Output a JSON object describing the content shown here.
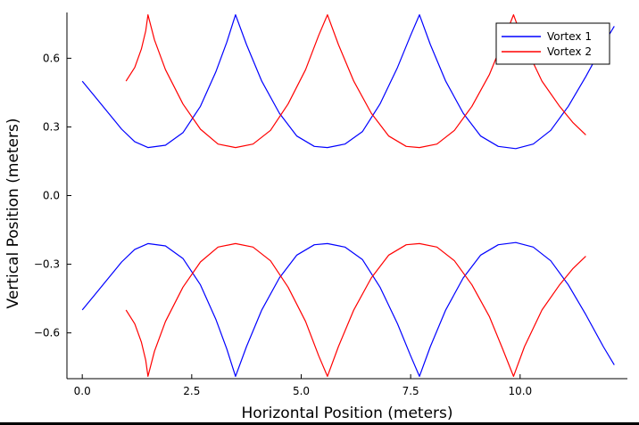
{
  "chart_data": {
    "type": "line",
    "title": "",
    "xlabel": "Horizontal Position (meters)",
    "ylabel": "Vertical Position (meters)",
    "xlim": [
      -0.35,
      12.45
    ],
    "ylim": [
      -0.8,
      0.8
    ],
    "xticks": [
      0.0,
      2.5,
      5.0,
      7.5,
      10.0
    ],
    "yticks": [
      -0.6,
      -0.3,
      0.0,
      0.3,
      0.6
    ],
    "xtick_labels": [
      "0.0",
      "2.5",
      "5.0",
      "7.5",
      "10.0"
    ],
    "ytick_labels": [
      "−0.6",
      "−0.3",
      "0.0",
      "0.3",
      "0.6"
    ],
    "grid": false,
    "legend_position": "top-right",
    "series": [
      {
        "name": "Vortex 1",
        "color": "#0000ff",
        "segments": [
          {
            "x": [
              0.0,
              0.3,
              0.6,
              0.9,
              1.2,
              1.5,
              1.9,
              2.3,
              2.7,
              3.05,
              3.3,
              3.5,
              3.75,
              4.1,
              4.5,
              4.9,
              5.3,
              5.6,
              6.0,
              6.4,
              6.8,
              7.2,
              7.5,
              7.7,
              7.95,
              8.3,
              8.7,
              9.1,
              9.5,
              9.9,
              10.3,
              10.7,
              11.1,
              11.5,
              11.9,
              12.15
            ],
            "y": [
              0.5,
              0.43,
              0.36,
              0.29,
              0.235,
              0.21,
              0.22,
              0.275,
              0.39,
              0.54,
              0.67,
              0.79,
              0.66,
              0.5,
              0.36,
              0.26,
              0.215,
              0.21,
              0.225,
              0.28,
              0.4,
              0.56,
              0.7,
              0.79,
              0.66,
              0.5,
              0.36,
              0.26,
              0.215,
              0.205,
              0.225,
              0.285,
              0.39,
              0.52,
              0.66,
              0.74
            ]
          },
          {
            "x": [
              0.0,
              0.3,
              0.6,
              0.9,
              1.2,
              1.5,
              1.9,
              2.3,
              2.7,
              3.05,
              3.3,
              3.5,
              3.75,
              4.1,
              4.5,
              4.9,
              5.3,
              5.6,
              6.0,
              6.4,
              6.8,
              7.2,
              7.5,
              7.7,
              7.95,
              8.3,
              8.7,
              9.1,
              9.5,
              9.9,
              10.3,
              10.7,
              11.1,
              11.5,
              11.9,
              12.15
            ],
            "y": [
              -0.5,
              -0.43,
              -0.36,
              -0.29,
              -0.235,
              -0.21,
              -0.22,
              -0.275,
              -0.39,
              -0.54,
              -0.67,
              -0.79,
              -0.66,
              -0.5,
              -0.36,
              -0.26,
              -0.215,
              -0.21,
              -0.225,
              -0.28,
              -0.4,
              -0.56,
              -0.7,
              -0.79,
              -0.66,
              -0.5,
              -0.36,
              -0.26,
              -0.215,
              -0.205,
              -0.225,
              -0.285,
              -0.39,
              -0.52,
              -0.66,
              -0.74
            ]
          }
        ]
      },
      {
        "name": "Vortex 2",
        "color": "#ff0000",
        "segments": [
          {
            "x": [
              1.0,
              1.2,
              1.35,
              1.45,
              1.5,
              1.65,
              1.9,
              2.3,
              2.7,
              3.1,
              3.5,
              3.9,
              4.3,
              4.7,
              5.1,
              5.4,
              5.6,
              5.85,
              6.2,
              6.6,
              7.0,
              7.4,
              7.7,
              8.1,
              8.5,
              8.9,
              9.3,
              9.6,
              9.85,
              10.1,
              10.5,
              10.9,
              11.2,
              11.5
            ],
            "y": [
              0.5,
              0.56,
              0.64,
              0.72,
              0.79,
              0.68,
              0.55,
              0.4,
              0.29,
              0.225,
              0.21,
              0.225,
              0.285,
              0.4,
              0.55,
              0.7,
              0.79,
              0.66,
              0.5,
              0.36,
              0.26,
              0.215,
              0.21,
              0.225,
              0.285,
              0.39,
              0.53,
              0.67,
              0.79,
              0.66,
              0.5,
              0.39,
              0.32,
              0.265
            ]
          },
          {
            "x": [
              1.0,
              1.2,
              1.35,
              1.45,
              1.5,
              1.65,
              1.9,
              2.3,
              2.7,
              3.1,
              3.5,
              3.9,
              4.3,
              4.7,
              5.1,
              5.4,
              5.6,
              5.85,
              6.2,
              6.6,
              7.0,
              7.4,
              7.7,
              8.1,
              8.5,
              8.9,
              9.3,
              9.6,
              9.85,
              10.1,
              10.5,
              10.9,
              11.2,
              11.5
            ],
            "y": [
              -0.5,
              -0.56,
              -0.64,
              -0.72,
              -0.79,
              -0.68,
              -0.55,
              -0.4,
              -0.29,
              -0.225,
              -0.21,
              -0.225,
              -0.285,
              -0.4,
              -0.55,
              -0.7,
              -0.79,
              -0.66,
              -0.5,
              -0.36,
              -0.26,
              -0.215,
              -0.21,
              -0.225,
              -0.285,
              -0.39,
              -0.53,
              -0.67,
              -0.79,
              -0.66,
              -0.5,
              -0.39,
              -0.32,
              -0.265
            ]
          }
        ]
      }
    ]
  }
}
